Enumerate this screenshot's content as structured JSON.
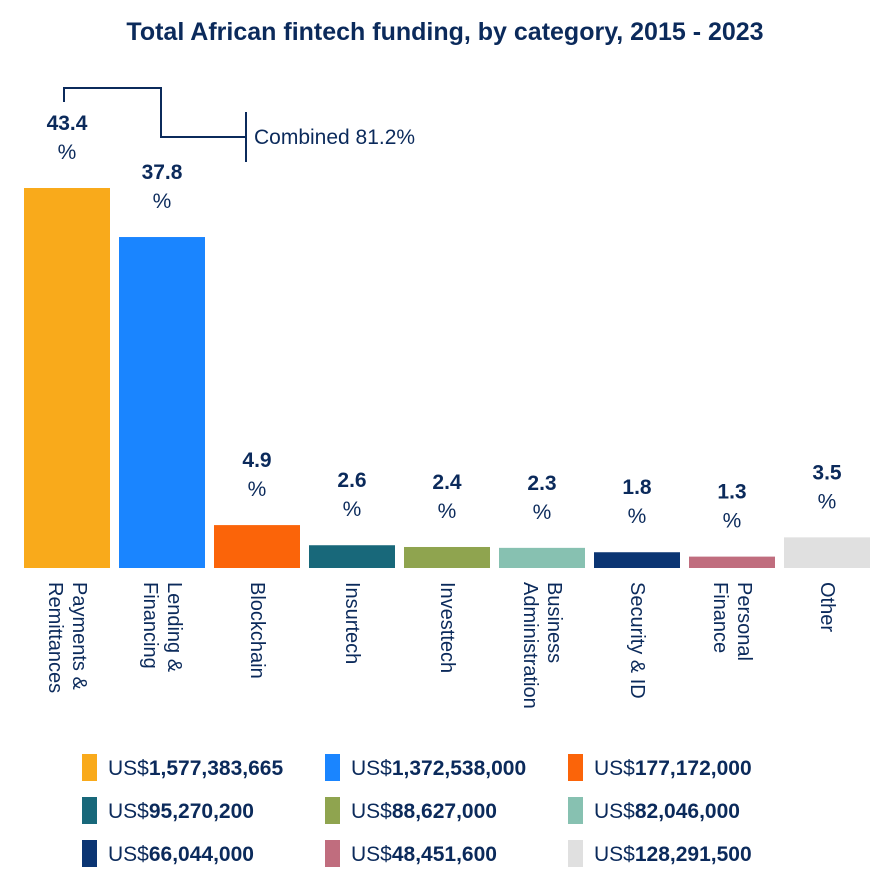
{
  "chart_data": {
    "type": "bar",
    "title": "Total African fintech funding, by category, 2015 - 2023",
    "unit": "%",
    "ylim": [
      0,
      43.4
    ],
    "categories": [
      {
        "line1": "Payments &",
        "line2": "Remittances",
        "value": 43.4,
        "value_label": "43.4",
        "color": "#f9aa1b",
        "amount_prefix": "US$",
        "amount": "1,577,383,665"
      },
      {
        "line1": "Lending &",
        "line2": "Financing",
        "value": 37.8,
        "value_label": "37.8",
        "color": "#1a85ff",
        "amount_prefix": "US$",
        "amount": "1,372,538,000"
      },
      {
        "line1": "Blockchain",
        "line2": "",
        "value": 4.9,
        "value_label": "4.9",
        "color": "#fb6409",
        "amount_prefix": "US$",
        "amount": "177,172,000"
      },
      {
        "line1": "Insurtech",
        "line2": "",
        "value": 2.6,
        "value_label": "2.6",
        "color": "#18687a",
        "amount_prefix": "US$",
        "amount": "95,270,200"
      },
      {
        "line1": "Investtech",
        "line2": "",
        "value": 2.4,
        "value_label": "2.4",
        "color": "#8fa44f",
        "amount_prefix": "US$",
        "amount": "88,627,000"
      },
      {
        "line1": "Business",
        "line2": "Administration",
        "value": 2.3,
        "value_label": "2.3",
        "color": "#87c1b1",
        "amount_prefix": "US$",
        "amount": "82,046,000"
      },
      {
        "line1": "Security & ID",
        "line2": "",
        "value": 1.8,
        "value_label": "1.8",
        "color": "#0b3573",
        "amount_prefix": "US$",
        "amount": "66,044,000"
      },
      {
        "line1": "Personal",
        "line2": "Finance",
        "value": 1.3,
        "value_label": "1.3",
        "color": "#c06d7e",
        "amount_prefix": "US$",
        "amount": "48,451,600"
      },
      {
        "line1": "Other",
        "line2": "",
        "value": 3.5,
        "value_label": "3.5",
        "color": "#e0e0e0",
        "amount_prefix": "US$",
        "amount": "128,291,500"
      }
    ],
    "annotation": {
      "text": "Combined 81.2%",
      "applies_to": [
        "Payments & Remittances",
        "Lending & Financing"
      ]
    }
  }
}
